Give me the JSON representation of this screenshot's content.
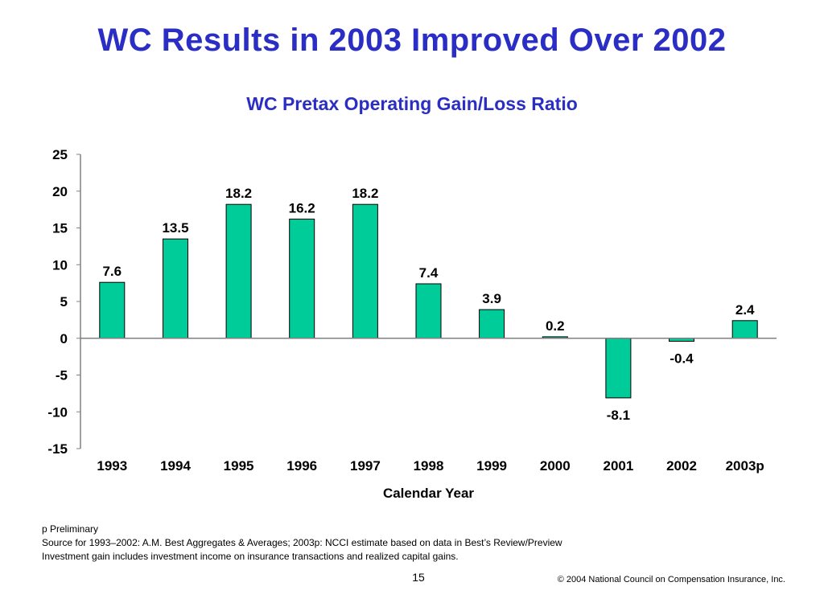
{
  "slide": {
    "title": "WC Results in 2003 Improved Over 2002",
    "page_number": "15",
    "copyright": "© 2004 National Council on Compensation Insurance, Inc."
  },
  "footnotes": [
    "p Preliminary",
    "Source for 1993–2002:  A.M. Best Aggregates & Averages; 2003p: NCCI estimate based on data in Best’s Review/Preview",
    "Investment gain includes investment income on insurance transactions and realized capital gains."
  ],
  "chart_data": {
    "type": "bar",
    "title": "WC Pretax Operating Gain/Loss Ratio",
    "xlabel": "Calendar Year",
    "ylabel": "",
    "categories": [
      "1993",
      "1994",
      "1995",
      "1996",
      "1997",
      "1998",
      "1999",
      "2000",
      "2001",
      "2002",
      "2003p"
    ],
    "values": [
      7.6,
      13.5,
      18.2,
      16.2,
      18.2,
      7.4,
      3.9,
      0.2,
      -8.1,
      -0.4,
      2.4
    ],
    "data_labels": [
      "7.6",
      "13.5",
      "18.2",
      "16.2",
      "18.2",
      "7.4",
      "3.9",
      "0.2",
      "-8.1",
      "-0.4",
      "2.4"
    ],
    "ylim": [
      -15,
      25
    ],
    "yticks": [
      "25",
      "20",
      "15",
      "10",
      "5",
      "0",
      "-5",
      "-10",
      "-15"
    ],
    "ytick_values": [
      25,
      20,
      15,
      10,
      5,
      0,
      -5,
      -10,
      -15
    ],
    "grid": false,
    "legend": "none",
    "bar_color": "#00cc99",
    "bar_edge_color": "#000000"
  }
}
